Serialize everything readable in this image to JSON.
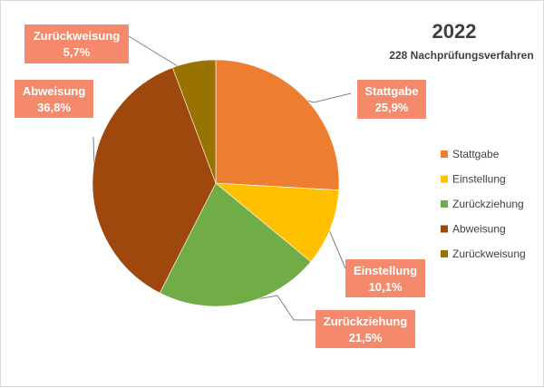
{
  "chart_data": {
    "type": "pie",
    "title": "2022",
    "subtitle": "228 Nachprüfungsverfahren",
    "slices": [
      {
        "name": "Stattgabe",
        "value": 25.9,
        "label": "25,9%",
        "color": "#ED7D31"
      },
      {
        "name": "Einstellung",
        "value": 10.1,
        "label": "10,1%",
        "color": "#FFC000"
      },
      {
        "name": "Zurückziehung",
        "value": 21.5,
        "label": "21,5%",
        "color": "#70AD47"
      },
      {
        "name": "Abweisung",
        "value": 36.8,
        "label": "36,8%",
        "color": "#9E480E"
      },
      {
        "name": "Zurückweisung",
        "value": 5.7,
        "label": "5,7%",
        "color": "#997300"
      }
    ],
    "legend": {
      "position": "right",
      "entries": [
        "Stattgabe",
        "Einstellung",
        "Zurückziehung",
        "Abweisung",
        "Zurückweisung"
      ]
    },
    "callout_color": "#F4896B"
  }
}
